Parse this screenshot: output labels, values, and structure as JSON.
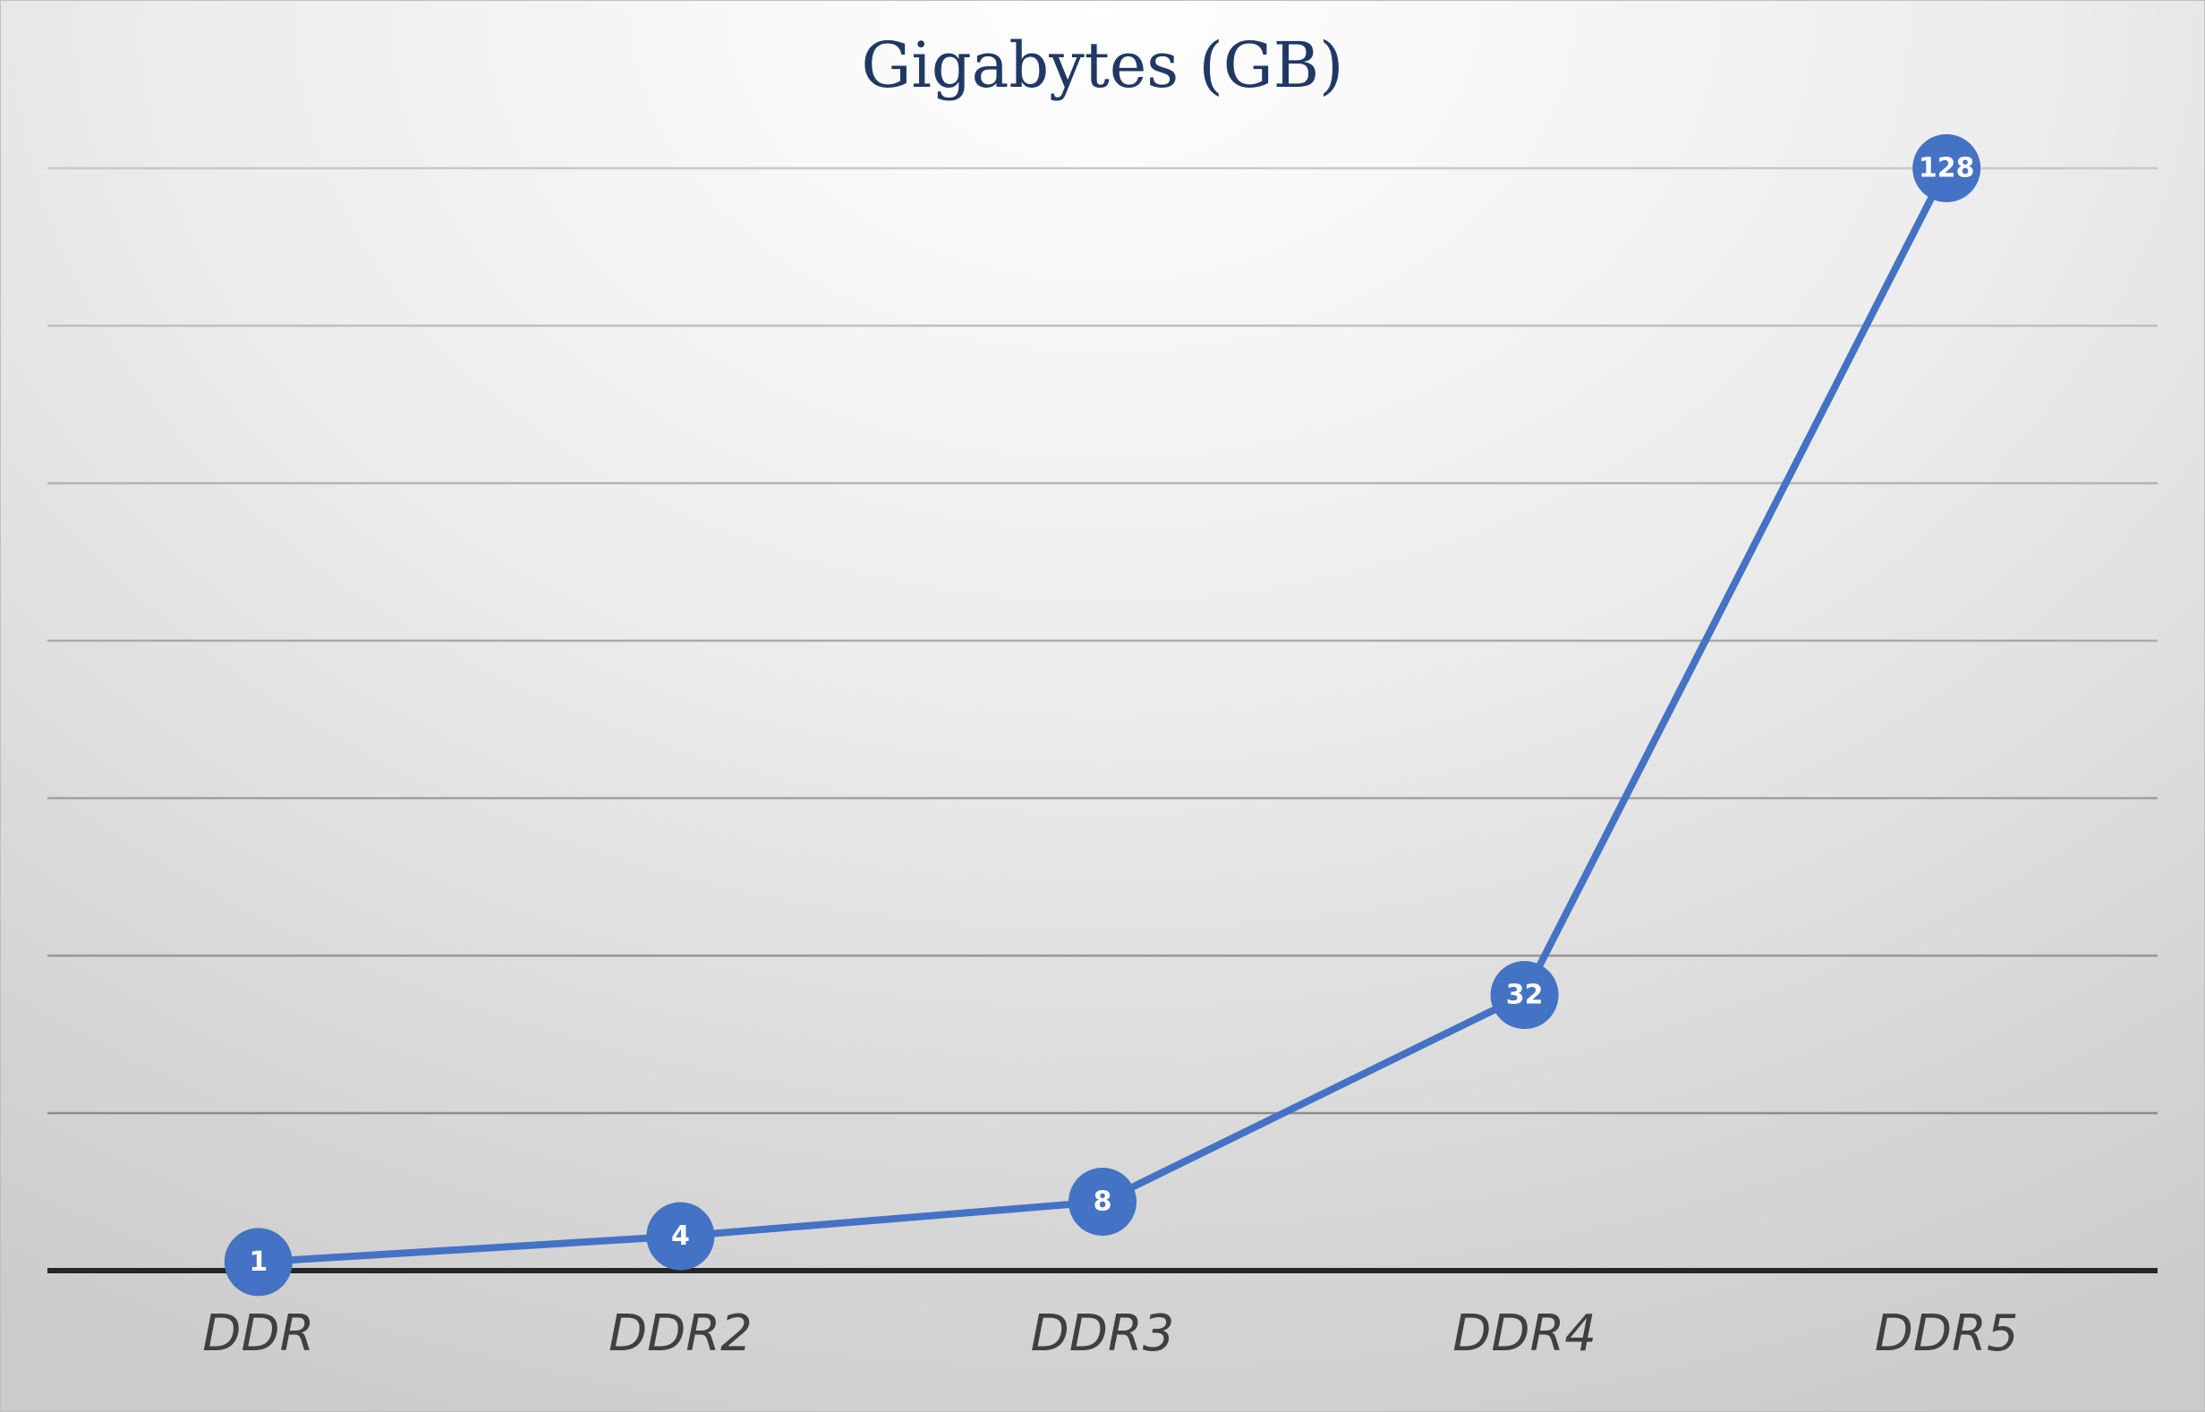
{
  "chart_data": {
    "type": "line",
    "title": "Gigabytes (GB)",
    "categories": [
      "DDR",
      "DDR2",
      "DDR3",
      "DDR4",
      "DDR5"
    ],
    "series": [
      {
        "values": [
          1,
          4,
          8,
          32,
          128
        ],
        "color": "#4472c4",
        "data_labels": [
          "1",
          "4",
          "8",
          "32",
          "128"
        ]
      }
    ],
    "xlabel": "",
    "ylabel": "",
    "ylim": [
      0,
      140
    ],
    "grid": true,
    "legend": "none",
    "data_labels_shown": true
  }
}
